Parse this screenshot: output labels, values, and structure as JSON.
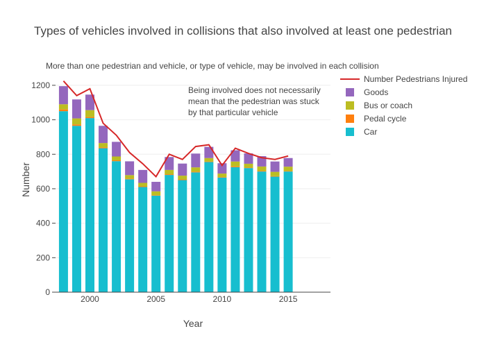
{
  "chart_data": {
    "type": "bar",
    "stacked": true,
    "title": "Types of vehicles involved in collisions that also involved at least one pedestrian",
    "subtitle": "More than one pedestrian and vehicle, or type of vehicle, may be involved in each collision",
    "annotation": [
      "Being involved does not necessarily",
      "mean that the pedestrian was stuck",
      "by that particular vehicle"
    ],
    "xlabel": "Year",
    "ylabel": "Number",
    "xlim": [
      1997.4,
      2018.2
    ],
    "ylim": [
      0,
      1260
    ],
    "xticks": [
      2000,
      2005,
      2010,
      2015
    ],
    "xtick_labels": [
      "2000",
      "2005",
      "2010",
      "2015"
    ],
    "yticks": [
      0,
      200,
      400,
      600,
      800,
      1000,
      1200
    ],
    "ytick_labels": [
      "0",
      "200",
      "400",
      "600",
      "800",
      "1000",
      "1200"
    ],
    "x": [
      1998,
      1999,
      2000,
      2001,
      2002,
      2003,
      2004,
      2005,
      2006,
      2007,
      2008,
      2009,
      2010,
      2011,
      2012,
      2013,
      2014,
      2015
    ],
    "series": [
      {
        "name": "Car",
        "color": "#17becf",
        "values": [
          1050,
          965,
          1010,
          835,
          760,
          655,
          610,
          560,
          680,
          650,
          695,
          755,
          665,
          725,
          720,
          700,
          670,
          700
        ]
      },
      {
        "name": "Pedal cycle",
        "color": "#ff7f0e",
        "values": [
          10,
          8,
          6,
          5,
          5,
          4,
          4,
          3,
          4,
          4,
          4,
          3,
          3,
          5,
          3,
          4,
          3,
          3
        ]
      },
      {
        "name": "Bus or coach",
        "color": "#bcbd22",
        "values": [
          30,
          35,
          40,
          25,
          22,
          20,
          20,
          22,
          25,
          22,
          25,
          20,
          20,
          28,
          22,
          25,
          25,
          25
        ]
      },
      {
        "name": "Goods",
        "color": "#9467bd",
        "values": [
          105,
          110,
          90,
          100,
          85,
          80,
          75,
          55,
          75,
          70,
          80,
          65,
          60,
          65,
          60,
          60,
          60,
          50
        ]
      }
    ],
    "line": {
      "name": "Number Pedestrians Injured",
      "color": "#d62728",
      "values": [
        1225,
        1140,
        1180,
        980,
        910,
        810,
        745,
        670,
        800,
        770,
        845,
        855,
        735,
        835,
        805,
        780,
        770,
        790
      ]
    },
    "legend": [
      "Number Pedestrians Injured",
      "Goods",
      "Bus or coach",
      "Pedal cycle",
      "Car"
    ],
    "legend_position": "top-right"
  }
}
